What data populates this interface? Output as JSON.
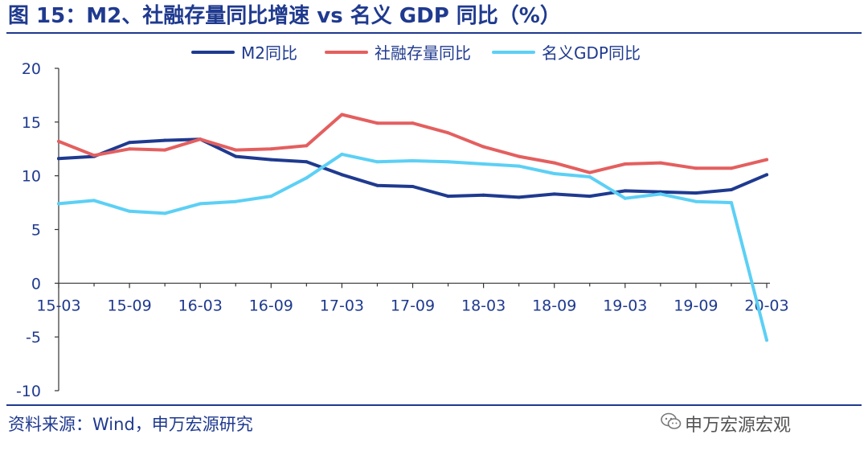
{
  "page": {
    "title": "图 15：M2、社融存量同比增速 vs 名义 GDP 同比（%）",
    "source": "资料来源：Wind，申万宏源研究",
    "brand": "申万宏源宏观"
  },
  "chart_data": {
    "type": "line",
    "title": "图 15：M2、社融存量同比增速 vs 名义 GDP 同比（%）",
    "xlabel": "",
    "ylabel": "",
    "ylim": [
      -10,
      20
    ],
    "yticks": [
      "20",
      "15",
      "10",
      "5",
      "0",
      "-5",
      "-10"
    ],
    "ytick_values": [
      20,
      15,
      10,
      5,
      0,
      -5,
      -10
    ],
    "xtick_labels": [
      "15-03",
      "15-09",
      "16-03",
      "16-09",
      "17-03",
      "17-09",
      "18-03",
      "18-09",
      "19-03",
      "19-09",
      "20-03"
    ],
    "x": [
      "15-03",
      "15-06",
      "15-09",
      "15-12",
      "16-03",
      "16-06",
      "16-09",
      "16-12",
      "17-03",
      "17-06",
      "17-09",
      "17-12",
      "18-03",
      "18-06",
      "18-09",
      "18-12",
      "19-03",
      "19-06",
      "19-09",
      "19-12",
      "20-03"
    ],
    "grid": false,
    "legend_position": "top-center",
    "series": [
      {
        "name": "M2同比",
        "color": "#1f3a8f",
        "values": [
          11.6,
          11.8,
          13.1,
          13.3,
          13.4,
          11.8,
          11.5,
          11.3,
          10.1,
          9.1,
          9.0,
          8.1,
          8.2,
          8.0,
          8.3,
          8.1,
          8.6,
          8.5,
          8.4,
          8.7,
          10.1
        ]
      },
      {
        "name": "社融存量同比",
        "color": "#e45f5f",
        "values": [
          13.2,
          11.9,
          12.5,
          12.4,
          13.4,
          12.4,
          12.5,
          12.8,
          15.7,
          14.9,
          14.9,
          14.0,
          12.7,
          11.8,
          11.2,
          10.3,
          11.1,
          11.2,
          10.7,
          10.7,
          11.5
        ]
      },
      {
        "name": "名义GDP同比",
        "color": "#5cd0f5",
        "values": [
          7.4,
          7.7,
          6.7,
          6.5,
          7.4,
          7.6,
          8.1,
          9.8,
          12.0,
          11.3,
          11.4,
          11.3,
          11.1,
          10.9,
          10.2,
          9.9,
          7.9,
          8.3,
          7.6,
          7.5,
          -5.3
        ]
      }
    ]
  }
}
